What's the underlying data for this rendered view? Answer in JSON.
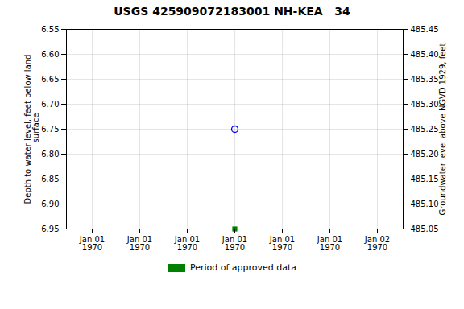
{
  "chart_data": {
    "type": "scatter",
    "title": "USGS 425909072183001 NH-KEA   34",
    "ylabel": "Depth to water level, feet below land\n surface",
    "y2label": "Groundwater level above NGVD 1929, feet",
    "categories": [
      "Jan 01\n1970",
      "Jan 01\n1970",
      "Jan 01\n1970",
      "Jan 01\n1970",
      "Jan 01\n1970",
      "Jan 01\n1970",
      "Jan 02\n1970"
    ],
    "series": [
      {
        "color": "blue",
        "marker": "open-circle",
        "values": [
          null,
          null,
          null,
          6.75,
          null,
          null,
          null
        ]
      },
      {
        "name": "Period of approved data",
        "color": "#008000",
        "marker": "square",
        "values": [
          null,
          null,
          null,
          6.95,
          null,
          null,
          null
        ]
      }
    ],
    "ylim": [
      6.95,
      6.55
    ],
    "yticks": [
      6.55,
      {
        "value": 6.6,
        "label": "6.60"
      },
      6.65,
      {
        "value": 6.7,
        "label": "6.70"
      },
      6.75,
      {
        "value": 6.8,
        "label": "6.80"
      },
      6.85,
      {
        "value": 6.9,
        "label": "6.90"
      },
      6.95
    ],
    "y2lim": [
      485.05,
      485.45
    ],
    "y2ticks": [
      485.45,
      {
        "value": 485.4,
        "label": "485.40"
      },
      485.35,
      {
        "value": 485.3,
        "label": "485.30"
      },
      485.25,
      {
        "value": 485.2,
        "label": "485.20"
      },
      485.15,
      {
        "value": 485.1,
        "label": "485.10"
      },
      485.05
    ],
    "grid": true,
    "legend": "bottom"
  }
}
